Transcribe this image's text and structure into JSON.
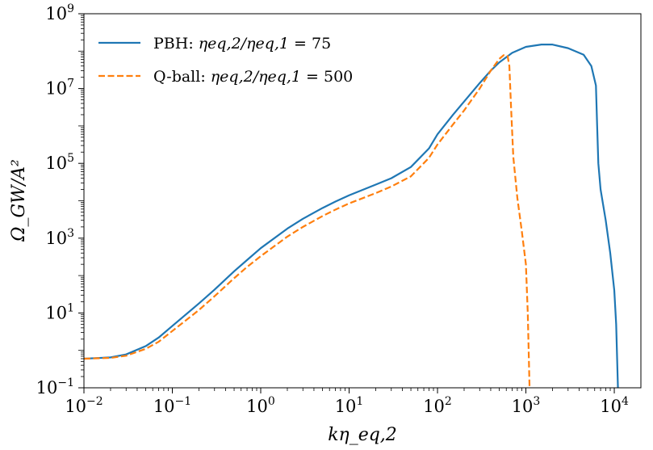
{
  "chart_data": {
    "type": "line",
    "title": "",
    "xlabel": "kη_eq,2",
    "ylabel": "Ω_GW/A²",
    "xscale": "log",
    "yscale": "log",
    "xlim": [
      0.01,
      20000
    ],
    "ylim": [
      0.1,
      1000000000
    ],
    "x_ticks": [
      {
        "base": "10",
        "exp": "−2",
        "value": 0.01
      },
      {
        "base": "10",
        "exp": "−1",
        "value": 0.1
      },
      {
        "base": "10",
        "exp": "0",
        "value": 1
      },
      {
        "base": "10",
        "exp": "1",
        "value": 10
      },
      {
        "base": "10",
        "exp": "2",
        "value": 100
      },
      {
        "base": "10",
        "exp": "3",
        "value": 1000
      },
      {
        "base": "10",
        "exp": "4",
        "value": 10000
      }
    ],
    "y_ticks": [
      {
        "base": "10",
        "exp": "−1",
        "value": 0.1
      },
      {
        "base": "10",
        "exp": "1",
        "value": 10
      },
      {
        "base": "10",
        "exp": "3",
        "value": 1000
      },
      {
        "base": "10",
        "exp": "5",
        "value": 100000
      },
      {
        "base": "10",
        "exp": "7",
        "value": 10000000
      },
      {
        "base": "10",
        "exp": "9",
        "value": 1000000000
      }
    ],
    "legend_position": "top-left",
    "series": [
      {
        "name": "PBH: η_eq,2/η_eq,1 = 75",
        "legend_prefix": "PBH: ",
        "legend_math": "ηeq,2/ηeq,1",
        "legend_value": "= 75",
        "color": "#1f77b4",
        "style": "solid",
        "points": [
          [
            0.01,
            0.6
          ],
          [
            0.02,
            0.65
          ],
          [
            0.03,
            0.78
          ],
          [
            0.05,
            1.3
          ],
          [
            0.07,
            2.2
          ],
          [
            0.1,
            4.5
          ],
          [
            0.2,
            18
          ],
          [
            0.3,
            42
          ],
          [
            0.5,
            130
          ],
          [
            0.7,
            260
          ],
          [
            1,
            540
          ],
          [
            2,
            1800
          ],
          [
            3,
            3300
          ],
          [
            5,
            6400
          ],
          [
            7,
            9500
          ],
          [
            10,
            14000
          ],
          [
            20,
            27000
          ],
          [
            30,
            40000
          ],
          [
            50,
            80000
          ],
          [
            80,
            250000
          ],
          [
            100,
            600000
          ],
          [
            150,
            2000000
          ],
          [
            200,
            4500000
          ],
          [
            300,
            14000000
          ],
          [
            400,
            30000000
          ],
          [
            500,
            50000000
          ],
          [
            700,
            90000000
          ],
          [
            1000,
            130000000
          ],
          [
            1500,
            150000000
          ],
          [
            2000,
            150000000
          ],
          [
            3000,
            120000000
          ],
          [
            4500,
            80000000
          ],
          [
            5500,
            40000000
          ],
          [
            6200,
            12000000
          ],
          [
            6400,
            1000000
          ],
          [
            6600,
            100000
          ],
          [
            7000,
            20000
          ],
          [
            8000,
            3000
          ],
          [
            9000,
            400
          ],
          [
            10000,
            40
          ],
          [
            10500,
            5
          ],
          [
            11000,
            0.1
          ]
        ]
      },
      {
        "name": "Q-ball: η_eq,2/η_eq,1 = 500",
        "legend_prefix": "Q-ball: ",
        "legend_math": "ηeq,2/ηeq,1",
        "legend_value": "= 500",
        "color": "#ff7f0e",
        "style": "dashed",
        "points": [
          [
            0.01,
            0.6
          ],
          [
            0.02,
            0.63
          ],
          [
            0.03,
            0.72
          ],
          [
            0.05,
            1.1
          ],
          [
            0.07,
            1.7
          ],
          [
            0.1,
            3.3
          ],
          [
            0.2,
            12
          ],
          [
            0.3,
            28
          ],
          [
            0.5,
            85
          ],
          [
            0.7,
            170
          ],
          [
            1,
            330
          ],
          [
            2,
            1100
          ],
          [
            3,
            2000
          ],
          [
            5,
            3900
          ],
          [
            7,
            5800
          ],
          [
            10,
            8500
          ],
          [
            20,
            16000
          ],
          [
            30,
            24000
          ],
          [
            50,
            45000
          ],
          [
            80,
            140000
          ],
          [
            100,
            320000
          ],
          [
            150,
            1100000
          ],
          [
            200,
            2600000
          ],
          [
            300,
            10000000
          ],
          [
            400,
            30000000
          ],
          [
            500,
            62000000
          ],
          [
            560,
            78000000
          ],
          [
            620,
            75000000
          ],
          [
            650,
            40000000
          ],
          [
            680,
            3000000
          ],
          [
            720,
            150000
          ],
          [
            800,
            12000
          ],
          [
            900,
            1500
          ],
          [
            1000,
            200
          ],
          [
            1050,
            10
          ],
          [
            1100,
            0.1
          ]
        ]
      }
    ]
  }
}
